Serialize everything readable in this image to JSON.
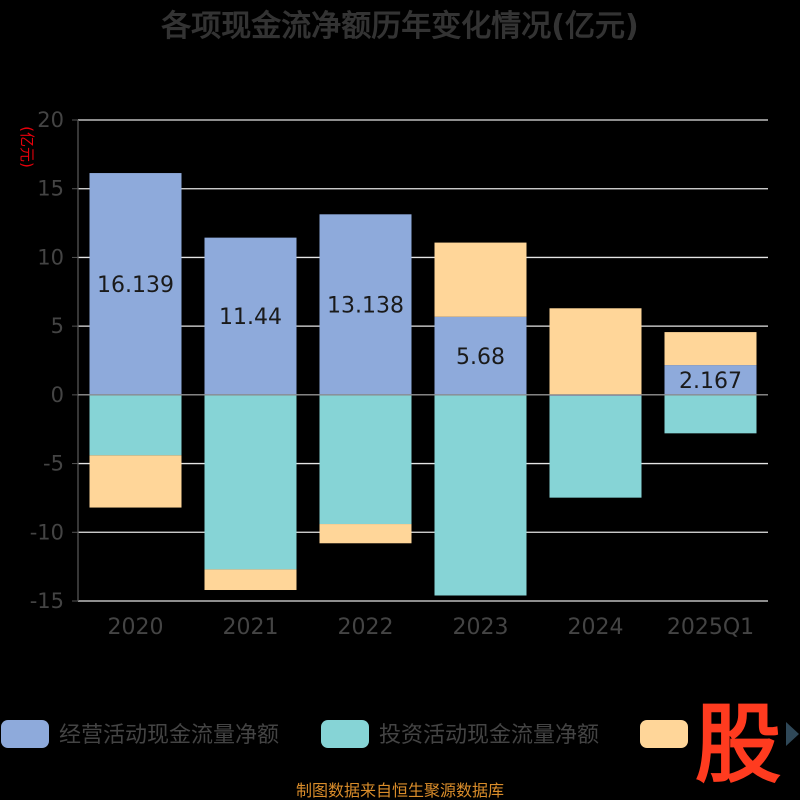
{
  "chart_data": {
    "type": "bar",
    "title": "各项现金流净额历年变化情况(亿元)",
    "ylabel": "(亿元)",
    "categories": [
      "2020",
      "2021",
      "2022",
      "2023",
      "2024",
      "2025Q1"
    ],
    "ylim": [
      -15,
      20
    ],
    "yticks": [
      "20",
      "15",
      "10",
      "5",
      "0",
      "-5",
      "-10",
      "-15"
    ],
    "ytick_values": [
      20,
      15,
      10,
      5,
      0,
      -5,
      -10,
      -15
    ],
    "stacked": true,
    "grid": true,
    "legend_position": "bottom",
    "series": [
      {
        "name": "经营活动现金流量净额",
        "color": "#8eaadb",
        "values": [
          16.139,
          11.44,
          13.138,
          5.68,
          -0.08,
          2.167
        ],
        "labels": [
          "16.139",
          "11.44",
          "13.138",
          "5.68",
          "",
          "2.167"
        ]
      },
      {
        "name": "投资活动现金流量净额",
        "color": "#86d4d6",
        "values": [
          -4.4,
          -12.7,
          -9.4,
          -14.6,
          -7.4,
          -2.8
        ]
      },
      {
        "name": "",
        "color": "#ffd699",
        "values": [
          -3.8,
          -1.5,
          -1.4,
          5.4,
          6.3,
          2.4
        ]
      }
    ]
  },
  "source": "制图数据来自恒生聚源数据库",
  "logo_text": "股"
}
